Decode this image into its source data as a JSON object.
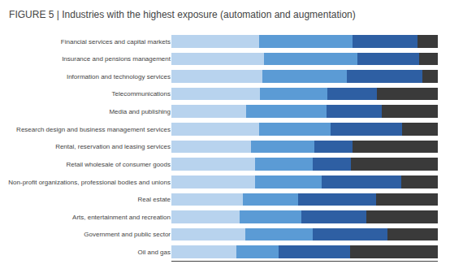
{
  "chart_data": {
    "type": "bar",
    "orientation": "horizontal",
    "stacked": true,
    "title": "FIGURE 5 | Industries with the highest exposure (automation and augmentation)",
    "categories": [
      "Financial services and capital markets",
      "Insurance and pensions management",
      "Information and technology services",
      "Telecommunications",
      "Media and publishing",
      "Research design and business management services",
      "Rental, reservation and leasing services",
      "Retail wholesale of consumer goods",
      "Non-profit organizations, professional bodies and unions",
      "Real estate",
      "Arts, entertainment and recreation",
      "Government and public sector",
      "Oil and gas"
    ],
    "series": [
      {
        "color": "#b8d3ee",
        "values": [
          30,
          30,
          30,
          29,
          24,
          27,
          25,
          26,
          25,
          22,
          21,
          22,
          20
        ]
      },
      {
        "color": "#5b9bd5",
        "values": [
          32,
          30,
          28,
          22,
          26,
          22,
          20,
          18,
          20,
          17,
          19,
          20,
          13
        ]
      },
      {
        "color": "#2e5fa3",
        "values": [
          22,
          20,
          25,
          16,
          18,
          22,
          12,
          12,
          24,
          24,
          20,
          22,
          22
        ]
      },
      {
        "color": "#3a3a3a",
        "values": [
          7,
          6,
          5,
          20,
          18,
          11,
          27,
          27,
          11,
          19,
          22,
          15,
          27
        ]
      }
    ],
    "xlim": [
      0,
      100
    ],
    "grid": false,
    "tick_labels": "y"
  }
}
